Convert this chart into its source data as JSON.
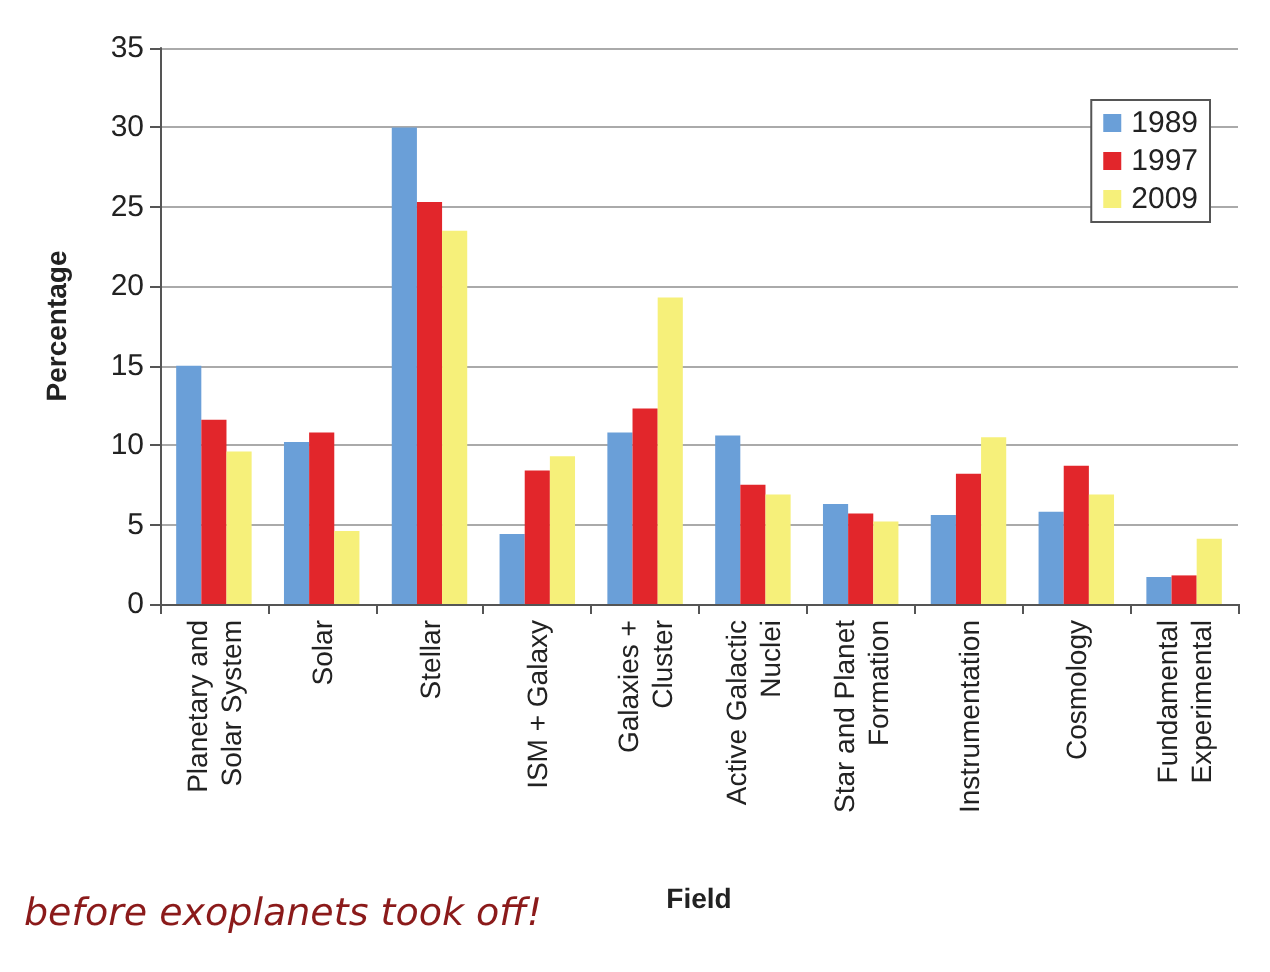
{
  "chart_data": {
    "type": "bar",
    "xlabel": "Field",
    "ylabel": "Percentage",
    "categories": [
      "Planetary and\nSolar System",
      "Solar",
      "Stellar",
      "ISM + Galaxy",
      "Galaxies +\nCluster",
      "Active Galactic\nNuclei",
      "Star and Planet\nFormation",
      "Instrumentation",
      "Cosmology",
      "Fundamental\nExperimental"
    ],
    "series": [
      {
        "name": "1989",
        "color": "#6a9fd8",
        "values": [
          15,
          10.2,
          30,
          4.4,
          10.8,
          10.6,
          6.3,
          5.6,
          5.8,
          1.7
        ]
      },
      {
        "name": "1997",
        "color": "#e2262b",
        "values": [
          11.6,
          10.8,
          25.3,
          8.4,
          12.3,
          7.5,
          5.7,
          8.2,
          8.7,
          1.8
        ]
      },
      {
        "name": "2009",
        "color": "#f6f07a",
        "values": [
          9.6,
          4.6,
          23.5,
          9.3,
          19.3,
          6.9,
          5.2,
          10.5,
          6.9,
          4.1
        ]
      }
    ],
    "ylim": [
      0,
      35
    ],
    "yticks": [
      0,
      5,
      10,
      15,
      20,
      25,
      30,
      35
    ],
    "grid": "y",
    "legend": "top right",
    "annotations": [
      "before exoplanets took off!"
    ]
  }
}
